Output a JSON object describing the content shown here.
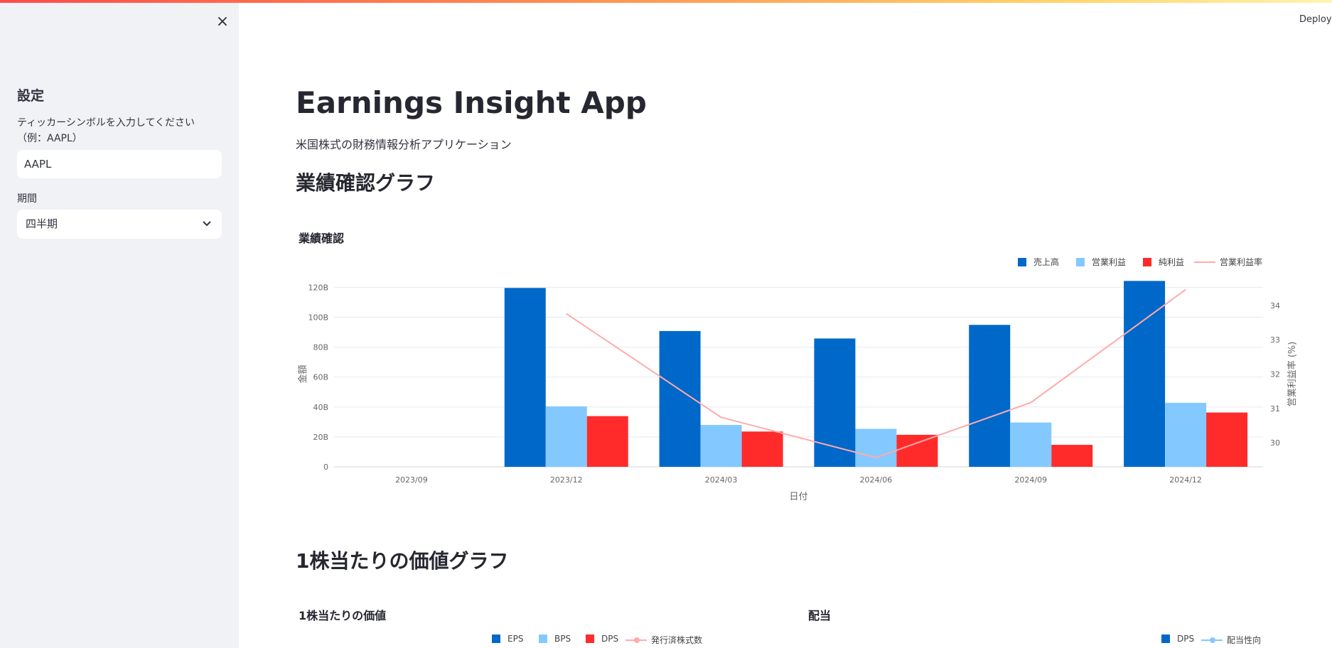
{
  "sidebar": {
    "close_icon": "×",
    "title": "設定",
    "ticker_label_line1": "ティッカーシンボルを入力してください",
    "ticker_label_line2": "（例：AAPL）",
    "ticker_value": "AAPL",
    "period_label": "期間",
    "period_value": "四半期",
    "chevron": "⌄"
  },
  "header": {
    "deploy_label": "Deploy"
  },
  "main": {
    "title": "Earnings Insight App",
    "subtitle": "米国株式の財務情報分析アプリケーション",
    "section1_title": "業績確認グラフ",
    "section2_title": "1株当たりの価値グラフ"
  },
  "colors": {
    "revenue": "#0068c9",
    "operating": "#83c9ff",
    "net": "#ff2b2b",
    "margin": "#ffabab"
  },
  "chart_data": [
    {
      "type": "bar",
      "title": "業績確認",
      "categories": [
        "2023/09",
        "2023/12",
        "2024/03",
        "2024/06",
        "2024/09",
        "2024/12"
      ],
      "xlabel": "日付",
      "ylabel": "金額",
      "y2label": "営業利益率 (%)",
      "ylim": [
        0,
        124
      ],
      "y_ticks": [
        "0",
        "20B",
        "40B",
        "60B",
        "80B",
        "100B",
        "120B"
      ],
      "y2lim": [
        29.3,
        34.7
      ],
      "y2_ticks": [
        "30",
        "31",
        "32",
        "33",
        "34"
      ],
      "legend_placement": "top-right",
      "series": [
        {
          "name": "売上高",
          "kind": "bar",
          "color": "#0068c9",
          "values": [
            null,
            119.6,
            90.8,
            85.8,
            94.9,
            124.3
          ]
        },
        {
          "name": "営業利益",
          "kind": "bar",
          "color": "#83c9ff",
          "values": [
            null,
            40.4,
            28.0,
            25.4,
            29.6,
            42.8
          ]
        },
        {
          "name": "純利益",
          "kind": "bar",
          "color": "#ff2b2b",
          "values": [
            null,
            33.9,
            23.6,
            21.4,
            14.7,
            36.3
          ]
        },
        {
          "name": "営業利益率",
          "kind": "line",
          "color": "#ffabab",
          "values": [
            null,
            33.76,
            30.74,
            29.57,
            31.17,
            34.46
          ]
        }
      ]
    },
    {
      "type": "bar",
      "title": "1株当たりの価値",
      "legend_placement": "top",
      "series": [
        {
          "name": "EPS",
          "kind": "bar",
          "color": "#0068c9"
        },
        {
          "name": "BPS",
          "kind": "bar",
          "color": "#83c9ff"
        },
        {
          "name": "DPS",
          "kind": "bar",
          "color": "#ff2b2b"
        },
        {
          "name": "発行済株式数",
          "kind": "line",
          "color": "#ffabab"
        }
      ]
    },
    {
      "type": "bar",
      "title": "配当",
      "legend_placement": "top-right",
      "series": [
        {
          "name": "DPS",
          "kind": "bar",
          "color": "#0068c9"
        },
        {
          "name": "配当性向",
          "kind": "line",
          "color": "#83c9ff"
        }
      ]
    }
  ]
}
